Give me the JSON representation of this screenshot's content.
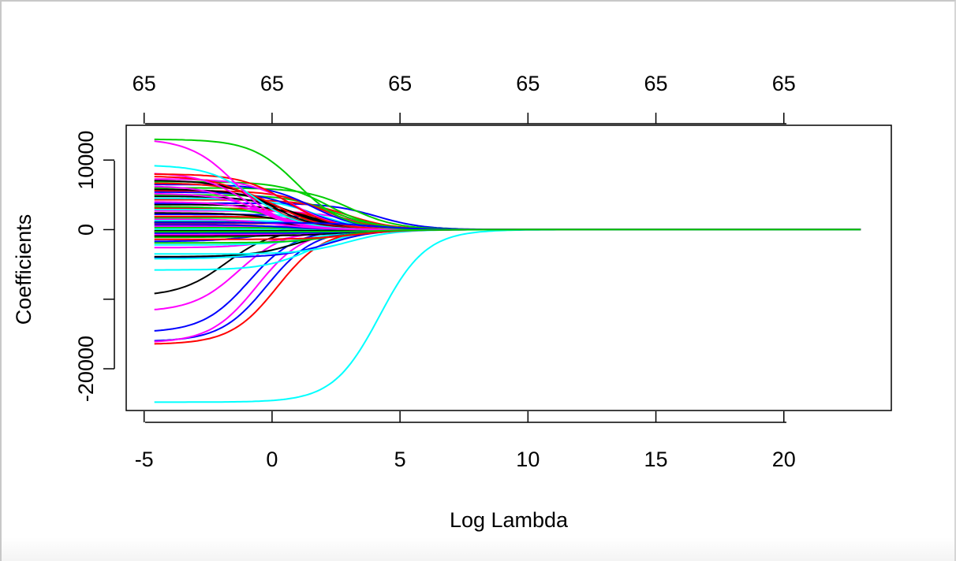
{
  "chart_data": {
    "type": "line",
    "title": "",
    "xlabel": "Log Lambda",
    "ylabel": "Coefficients",
    "xlim": [
      -5.7,
      24.2
    ],
    "ylim": [
      -26000,
      15000
    ],
    "x_ticks": [
      -5,
      0,
      5,
      10,
      15,
      20
    ],
    "x_tick_labels": [
      "-5",
      "0",
      "5",
      "10",
      "15",
      "20"
    ],
    "y_ticks": [
      -20000,
      -10000,
      0,
      10000
    ],
    "y_tick_labels": [
      "-20000",
      "",
      "0",
      "10000"
    ],
    "top_axis_labels": [
      "65",
      "65",
      "65",
      "65",
      "65",
      "65"
    ],
    "x_start": -4.6,
    "x_end": 23.0,
    "grid": false,
    "legend": "none",
    "series_note": "65 coefficient paths; values listed as (coefficient at x=-4.6, x at which it reaches half its start value)",
    "series": [
      {
        "color": "#00FFFF",
        "start": -24800,
        "mid": 4.2
      },
      {
        "color": "#FF0000",
        "start": -16500,
        "mid": 0.2
      },
      {
        "color": "#0000FF",
        "start": -16100,
        "mid": -0.2
      },
      {
        "color": "#FF00FF",
        "start": -16300,
        "mid": -0.6
      },
      {
        "color": "#0000FF",
        "start": -14800,
        "mid": -0.9
      },
      {
        "color": "#FF00FF",
        "start": -11800,
        "mid": -1.3
      },
      {
        "color": "#000000",
        "start": -9600,
        "mid": -1.8
      },
      {
        "color": "#00FFFF",
        "start": -5800,
        "mid": 1.5
      },
      {
        "color": "#0000FF",
        "start": -4000,
        "mid": 2.2
      },
      {
        "color": "#00FFFF",
        "start": -4200,
        "mid": 0.8
      },
      {
        "color": "#000000",
        "start": -3900,
        "mid": 1.0
      },
      {
        "color": "#00FFFF",
        "start": -3500,
        "mid": 3.0
      },
      {
        "color": "#FF00FF",
        "start": -2600,
        "mid": 0.5
      },
      {
        "color": "#00FFFF",
        "start": -2200,
        "mid": 1.7
      },
      {
        "color": "#00CD00",
        "start": -1900,
        "mid": 2.5
      },
      {
        "color": "#0000FF",
        "start": -1700,
        "mid": -0.5
      },
      {
        "color": "#FF0000",
        "start": -1400,
        "mid": 3.3
      },
      {
        "color": "#00CD00",
        "start": -1100,
        "mid": 0.9
      },
      {
        "color": "#000000",
        "start": -900,
        "mid": 2.8
      },
      {
        "color": "#FF00FF",
        "start": -700,
        "mid": 1.8
      },
      {
        "color": "#0000FF",
        "start": -500,
        "mid": 3.6
      },
      {
        "color": "#FF0000",
        "start": -300,
        "mid": 1.2
      },
      {
        "color": "#000000",
        "start": -150,
        "mid": 2.4
      },
      {
        "color": "#00FFFF",
        "start": 100,
        "mid": 3.1
      },
      {
        "color": "#00CD00",
        "start": 300,
        "mid": 1.6
      },
      {
        "color": "#FF00FF",
        "start": 500,
        "mid": 2.7
      },
      {
        "color": "#0000FF",
        "start": 700,
        "mid": 0.6
      },
      {
        "color": "#FF0000",
        "start": 900,
        "mid": 3.4
      },
      {
        "color": "#000000",
        "start": 1100,
        "mid": 1.4
      },
      {
        "color": "#00FFFF",
        "start": 1300,
        "mid": 2.3
      },
      {
        "color": "#FF00FF",
        "start": 1500,
        "mid": 0.3
      },
      {
        "color": "#00CD00",
        "start": 1700,
        "mid": 3.0
      },
      {
        "color": "#FF0000",
        "start": 1900,
        "mid": 1.9
      },
      {
        "color": "#0000FF",
        "start": 2200,
        "mid": 2.6
      },
      {
        "color": "#000000",
        "start": 2400,
        "mid": 0.7
      },
      {
        "color": "#FF00FF",
        "start": 2700,
        "mid": 3.2
      },
      {
        "color": "#00FFFF",
        "start": 2900,
        "mid": 1.1
      },
      {
        "color": "#FF0000",
        "start": 3100,
        "mid": 2.1
      },
      {
        "color": "#00CD00",
        "start": 3300,
        "mid": 0.4
      },
      {
        "color": "#000000",
        "start": 3600,
        "mid": 1.5
      },
      {
        "color": "#0000FF",
        "start": 3800,
        "mid": 4.1
      },
      {
        "color": "#FF00FF",
        "start": 4000,
        "mid": 0.1
      },
      {
        "color": "#FF0000",
        "start": 4300,
        "mid": 2.9
      },
      {
        "color": "#00FFFF",
        "start": 4500,
        "mid": 1.7
      },
      {
        "color": "#000000",
        "start": 4800,
        "mid": 0.9
      },
      {
        "color": "#00CD00",
        "start": 5000,
        "mid": 2.4
      },
      {
        "color": "#FF00FF",
        "start": 5200,
        "mid": -0.3
      },
      {
        "color": "#0000FF",
        "start": 5400,
        "mid": 1.3
      },
      {
        "color": "#FF0000",
        "start": 5600,
        "mid": 2.0
      },
      {
        "color": "#000000",
        "start": 5800,
        "mid": 0.5
      },
      {
        "color": "#00CD00",
        "start": 6000,
        "mid": 3.1
      },
      {
        "color": "#FF00FF",
        "start": 6300,
        "mid": -0.8
      },
      {
        "color": "#0000FF",
        "start": 6500,
        "mid": 1.6
      },
      {
        "color": "#FF0000",
        "start": 6700,
        "mid": 0.2
      },
      {
        "color": "#00CD00",
        "start": 6900,
        "mid": 2.2
      },
      {
        "color": "#000000",
        "start": 7100,
        "mid": -0.1
      },
      {
        "color": "#FF00FF",
        "start": 7300,
        "mid": 0.8
      },
      {
        "color": "#FF0000",
        "start": 7700,
        "mid": -0.4
      },
      {
        "color": "#FF00FF",
        "start": 8200,
        "mid": -1.0
      },
      {
        "color": "#FF0000",
        "start": 8000,
        "mid": 0.6
      },
      {
        "color": "#00FFFF",
        "start": 9300,
        "mid": -0.7
      },
      {
        "color": "#FF00FF",
        "start": 13100,
        "mid": -1.4
      },
      {
        "color": "#00CD00",
        "start": 13000,
        "mid": 1.0
      },
      {
        "color": "#0000FF",
        "start": 1000,
        "mid": 4.0
      },
      {
        "color": "#00CD00",
        "start": -300,
        "mid": 4.5
      }
    ]
  }
}
